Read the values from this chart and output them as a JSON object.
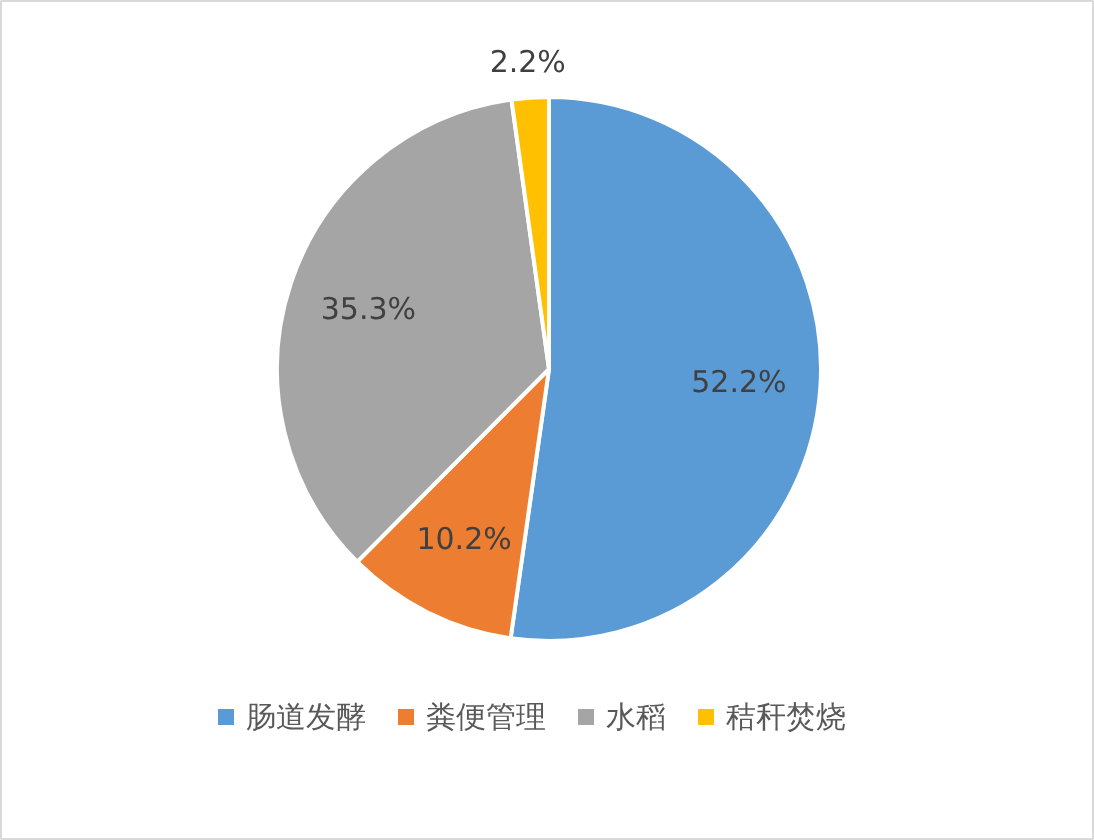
{
  "chart_data": {
    "type": "pie",
    "categories": [
      "肠道发酵",
      "粪便管理",
      "水稻",
      "秸秆焚烧"
    ],
    "values": [
      52.2,
      10.2,
      35.3,
      2.2
    ],
    "colors": [
      "#5b9bd5",
      "#ed7d31",
      "#a5a5a5",
      "#ffc000"
    ],
    "value_labels": [
      "52.2%",
      "10.2%",
      "35.3%",
      "2.2%"
    ],
    "legend": "bottom"
  }
}
